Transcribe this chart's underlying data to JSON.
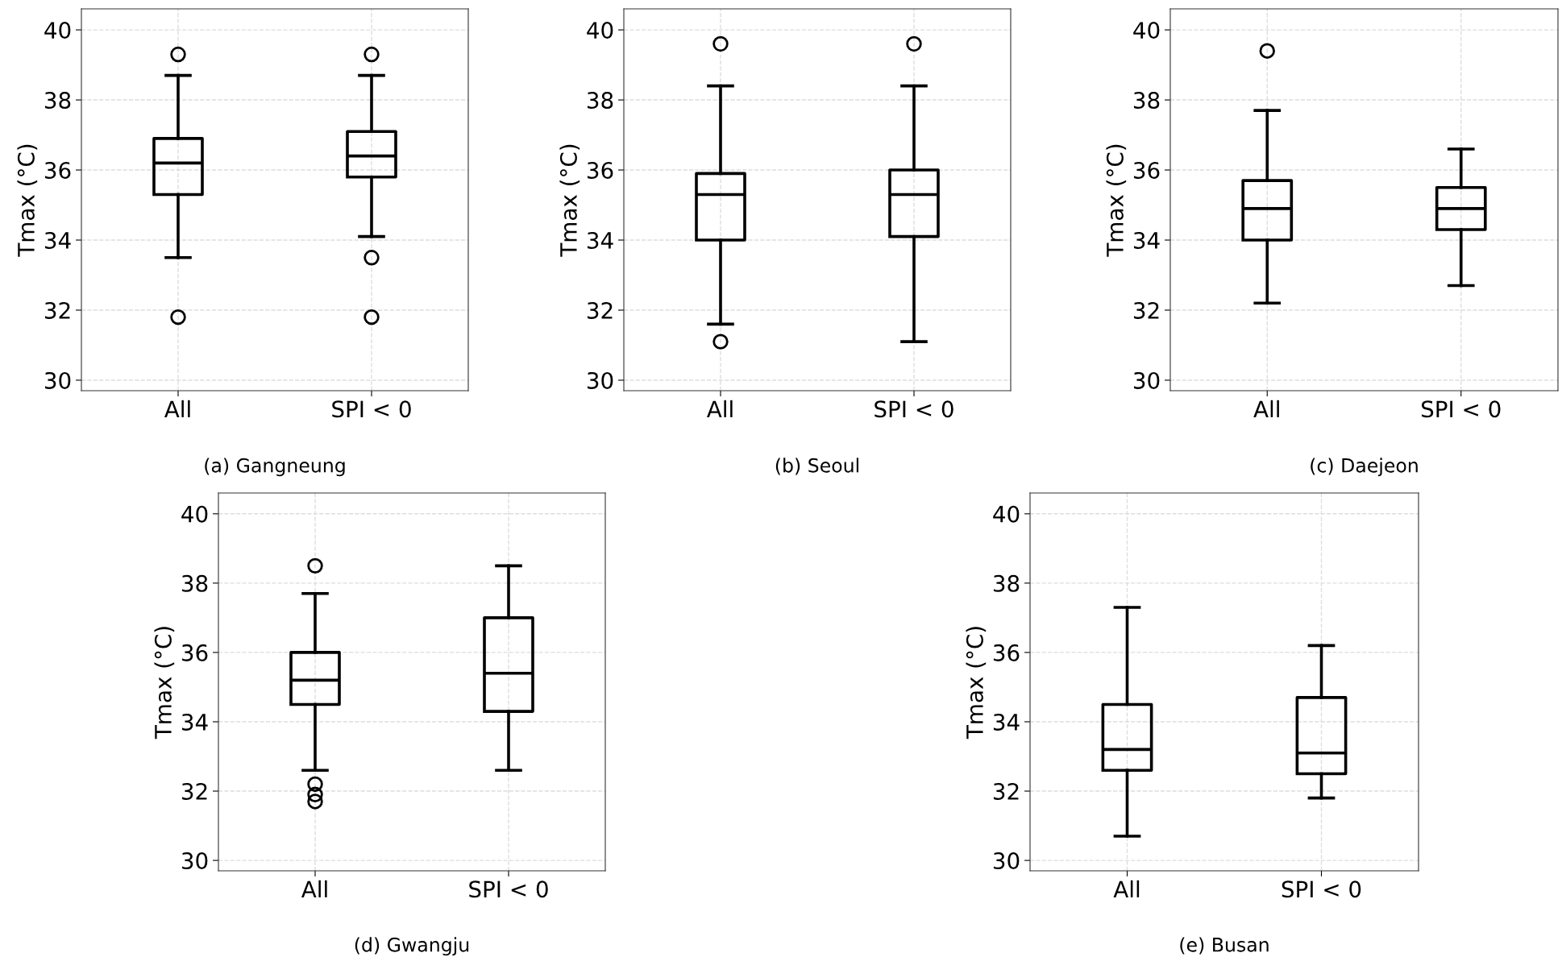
{
  "chart_data": [
    {
      "type": "box",
      "categories": [
        "All",
        "SPI < 0"
      ],
      "ylabel": "Tmax (°C)",
      "ylim": [
        29.7,
        40.6
      ],
      "yticks": [
        30,
        32,
        34,
        36,
        38,
        40
      ],
      "grid": true,
      "annotations": [
        "(a) Gangneung"
      ],
      "boxes": [
        {
          "low": 33.5,
          "q1": 35.3,
          "median": 36.2,
          "q3": 36.9,
          "high": 38.7,
          "outliers": [
            39.3,
            31.8
          ]
        },
        {
          "low": 34.1,
          "q1": 35.8,
          "median": 36.4,
          "q3": 37.1,
          "high": 38.7,
          "outliers": [
            39.3,
            33.5,
            31.8
          ]
        }
      ]
    },
    {
      "type": "box",
      "categories": [
        "All",
        "SPI < 0"
      ],
      "ylabel": "Tmax (°C)",
      "ylim": [
        29.7,
        40.6
      ],
      "yticks": [
        30,
        32,
        34,
        36,
        38,
        40
      ],
      "grid": true,
      "annotations": [
        "(b) Seoul"
      ],
      "boxes": [
        {
          "low": 31.6,
          "q1": 34.0,
          "median": 35.3,
          "q3": 35.9,
          "high": 38.4,
          "outliers": [
            39.6,
            31.1
          ]
        },
        {
          "low": 31.1,
          "q1": 34.1,
          "median": 35.3,
          "q3": 36.0,
          "high": 38.4,
          "outliers": [
            39.6
          ]
        }
      ]
    },
    {
      "type": "box",
      "categories": [
        "All",
        "SPI < 0"
      ],
      "ylabel": "Tmax (°C)",
      "ylim": [
        29.7,
        40.6
      ],
      "yticks": [
        30,
        32,
        34,
        36,
        38,
        40
      ],
      "grid": true,
      "annotations": [
        "(c) Daejeon"
      ],
      "boxes": [
        {
          "low": 32.2,
          "q1": 34.0,
          "median": 34.9,
          "q3": 35.7,
          "high": 37.7,
          "outliers": [
            39.4
          ]
        },
        {
          "low": 32.7,
          "q1": 34.3,
          "median": 34.9,
          "q3": 35.5,
          "high": 36.6
        }
      ]
    },
    {
      "type": "box",
      "categories": [
        "All",
        "SPI < 0"
      ],
      "ylabel": "Tmax (°C)",
      "ylim": [
        29.7,
        40.6
      ],
      "yticks": [
        30,
        32,
        34,
        36,
        38,
        40
      ],
      "grid": true,
      "annotations": [
        "(d) Gwangju"
      ],
      "boxes": [
        {
          "low": 32.6,
          "q1": 34.5,
          "median": 35.2,
          "q3": 36.0,
          "high": 37.7,
          "outliers": [
            38.5,
            32.2,
            31.9,
            31.7
          ]
        },
        {
          "low": 32.6,
          "q1": 34.3,
          "median": 35.4,
          "q3": 37.0,
          "high": 38.5
        }
      ]
    },
    {
      "type": "box",
      "categories": [
        "All",
        "SPI < 0"
      ],
      "ylabel": "Tmax (°C)",
      "ylim": [
        29.7,
        40.6
      ],
      "yticks": [
        30,
        32,
        34,
        36,
        38,
        40
      ],
      "grid": true,
      "annotations": [
        "(e) Busan"
      ],
      "boxes": [
        {
          "low": 30.7,
          "q1": 32.6,
          "median": 33.2,
          "q3": 34.5,
          "high": 37.3
        },
        {
          "low": 31.8,
          "q1": 32.5,
          "median": 33.1,
          "q3": 34.7,
          "high": 36.2
        }
      ]
    }
  ]
}
